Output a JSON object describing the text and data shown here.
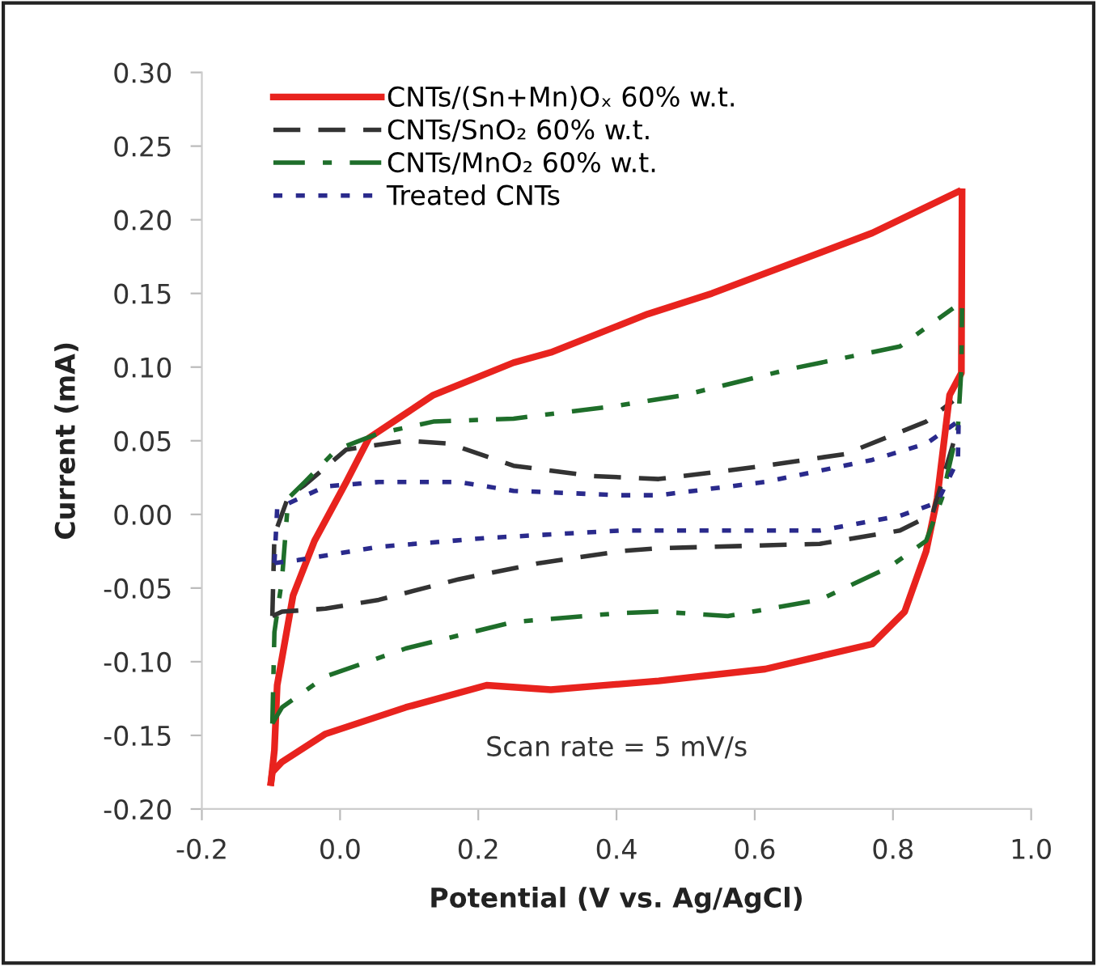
{
  "chart_data": {
    "type": "line",
    "xlabel": "Potential (V vs. Ag/AgCl)",
    "ylabel": "Current (mA)",
    "xlim": [
      -0.2,
      1.0
    ],
    "xticks": [
      {
        "value": -0.2,
        "label": "-0.2"
      },
      {
        "value": 0,
        "label": "0.0"
      },
      {
        "value": 0.2,
        "label": "0.2"
      },
      {
        "value": 0.4,
        "label": "0.4"
      },
      {
        "value": 0.6,
        "label": "0.6"
      },
      {
        "value": 0.8,
        "label": "0.8"
      },
      {
        "value": 1.0,
        "label": "1.0"
      }
    ],
    "ylim": [
      -0.2,
      0.3
    ],
    "yticks": [
      {
        "value": -0.2,
        "label": "-0.20"
      },
      {
        "value": -0.15,
        "label": "-0.15"
      },
      {
        "value": -0.1,
        "label": "-0.10"
      },
      {
        "value": -0.05,
        "label": "-0.05"
      },
      {
        "value": 0,
        "label": "0.00"
      },
      {
        "value": 0.05,
        "label": "0.05"
      },
      {
        "value": 0.1,
        "label": "0.10"
      },
      {
        "value": 0.15,
        "label": "0.15"
      },
      {
        "value": 0.2,
        "label": "0.20"
      },
      {
        "value": 0.25,
        "label": "0.25"
      },
      {
        "value": 0.3,
        "label": "0.30"
      }
    ],
    "grid": false,
    "legend": "top left",
    "marker": "none",
    "annotations": [
      "Scan rate = 5 mV/s"
    ],
    "series": [
      {
        "name": "CNTs/(Sn+Mn)Oₓ 60% w.t.",
        "color": "#e8231e",
        "line_style": "solid",
        "x": [
          -0.1,
          -0.095,
          -0.091,
          -0.068,
          -0.037,
          0.009,
          0.042,
          0.135,
          0.251,
          0.305,
          0.445,
          0.538,
          0.77,
          0.894
        ],
        "values": [
          -0.182,
          -0.16,
          -0.116,
          -0.055,
          -0.018,
          0.022,
          0.052,
          0.081,
          0.103,
          0.11,
          0.136,
          0.15,
          0.191,
          0.219
        ]
      },
      {
        "name": "CNTs/SnO₂ 60% w.t.",
        "color": "#333333",
        "line_style": "dashed",
        "x": [
          -0.098,
          -0.095,
          -0.075,
          -0.051,
          0.009,
          0.095,
          0.158,
          0.251,
          0.367,
          0.461,
          0.615,
          0.731,
          0.848,
          0.887
        ],
        "values": [
          -0.069,
          -0.014,
          0.012,
          0.02,
          0.044,
          0.05,
          0.048,
          0.033,
          0.026,
          0.024,
          0.033,
          0.041,
          0.063,
          0.077
        ]
      },
      {
        "name": "CNTs/MnO₂ 60% w.t.",
        "color": "#1e6e2a",
        "line_style": "dashdot",
        "x": [
          -0.098,
          -0.095,
          -0.084,
          -0.075,
          -0.051,
          -0.005,
          0.056,
          0.135,
          0.251,
          0.405,
          0.498,
          0.654,
          0.81,
          0.887
        ],
        "values": [
          -0.142,
          -0.08,
          -0.044,
          0.011,
          0.022,
          0.044,
          0.055,
          0.063,
          0.065,
          0.074,
          0.081,
          0.099,
          0.114,
          0.14
        ]
      },
      {
        "name": "Treated CNTs",
        "color": "#2a2a8c",
        "line_style": "dotted",
        "x": [
          -0.095,
          -0.091,
          -0.021,
          0.056,
          0.172,
          0.251,
          0.405,
          0.461,
          0.615,
          0.77,
          0.848,
          0.894
        ],
        "values": [
          -0.033,
          0.004,
          0.019,
          0.022,
          0.022,
          0.016,
          0.013,
          0.013,
          0.022,
          0.037,
          0.048,
          0.063
        ]
      },
      {
        "color": "#e8231e",
        "line_style": "solid",
        "x": [
          -0.1,
          -0.098,
          -0.084,
          -0.021,
          0.095,
          0.212,
          0.305,
          0.461,
          0.615,
          0.77,
          0.817,
          0.848,
          0.864,
          0.882,
          0.899,
          0.9
        ],
        "values": [
          -0.182,
          -0.175,
          -0.168,
          -0.149,
          -0.131,
          -0.116,
          -0.119,
          -0.113,
          -0.105,
          -0.088,
          -0.066,
          -0.025,
          0.011,
          0.081,
          0.096,
          0.219
        ]
      },
      {
        "color": "#333333",
        "line_style": "dashed",
        "x": [
          -0.098,
          -0.084,
          -0.021,
          0.056,
          0.172,
          0.289,
          0.405,
          0.461,
          0.694,
          0.81,
          0.857,
          0.894
        ],
        "values": [
          -0.069,
          -0.066,
          -0.064,
          -0.058,
          -0.044,
          -0.033,
          -0.025,
          -0.023,
          -0.02,
          -0.011,
          0.0,
          0.059
        ]
      },
      {
        "color": "#1e6e2a",
        "line_style": "dashdot",
        "x": [
          -0.098,
          -0.084,
          -0.021,
          0.095,
          0.251,
          0.405,
          0.461,
          0.561,
          0.694,
          0.794,
          0.848,
          0.871,
          0.894,
          0.899,
          0.9
        ],
        "values": [
          -0.142,
          -0.131,
          -0.11,
          -0.091,
          -0.073,
          -0.067,
          -0.066,
          -0.069,
          -0.058,
          -0.036,
          -0.018,
          0.011,
          0.059,
          0.099,
          0.14
        ]
      },
      {
        "color": "#2a2a8c",
        "line_style": "dotted",
        "x": [
          -0.095,
          -0.061,
          0.056,
          0.212,
          0.405,
          0.694,
          0.81,
          0.864,
          0.894,
          0.895
        ],
        "values": [
          -0.033,
          -0.031,
          -0.022,
          -0.016,
          -0.011,
          -0.011,
          -0.001,
          0.008,
          0.037,
          0.063
        ]
      }
    ]
  }
}
